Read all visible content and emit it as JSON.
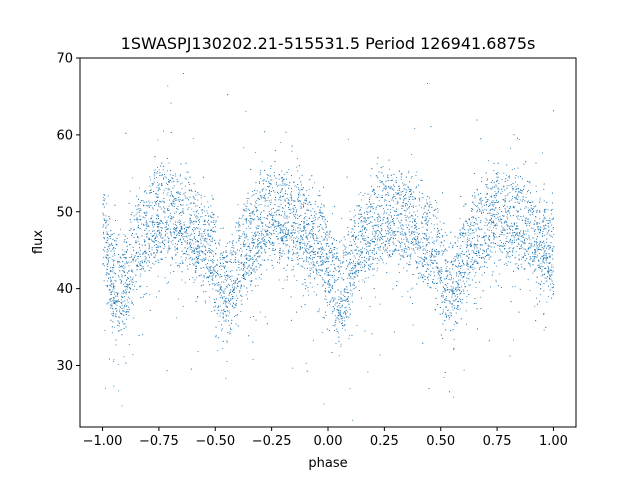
{
  "chart_data": {
    "type": "scatter",
    "title": "1SWASPJ130202.21-515531.5 Period 126941.6875s",
    "xlabel": "phase",
    "ylabel": "flux",
    "xlim": [
      -1.1,
      1.1
    ],
    "ylim": [
      22,
      70
    ],
    "xticks": [
      -1.0,
      -0.75,
      -0.5,
      -0.25,
      0.0,
      0.25,
      0.5,
      0.75,
      1.0
    ],
    "xtick_labels": [
      "−1.00",
      "−0.75",
      "−0.50",
      "−0.25",
      "0.00",
      "0.25",
      "0.50",
      "0.75",
      "1.00"
    ],
    "yticks": [
      30,
      40,
      50,
      60,
      70
    ],
    "ytick_labels": [
      "30",
      "40",
      "50",
      "60",
      "70"
    ],
    "grid": false,
    "marker_color": "#1f77b4",
    "series": [
      {
        "profile_points": [
          {
            "x": -1.0,
            "y_center": 45.0
          },
          {
            "x": -0.95,
            "y_center": 39.0
          },
          {
            "x": -0.92,
            "y_center": 37.5
          },
          {
            "x": -0.85,
            "y_center": 44.0
          },
          {
            "x": -0.75,
            "y_center": 47.5
          },
          {
            "x": -0.65,
            "y_center": 47.0
          },
          {
            "x": -0.55,
            "y_center": 44.0
          },
          {
            "x": -0.45,
            "y_center": 38.0
          },
          {
            "x": -0.35,
            "y_center": 44.5
          },
          {
            "x": -0.25,
            "y_center": 47.5
          },
          {
            "x": -0.15,
            "y_center": 47.0
          },
          {
            "x": -0.05,
            "y_center": 44.0
          },
          {
            "x": 0.05,
            "y_center": 37.5
          },
          {
            "x": 0.15,
            "y_center": 44.0
          },
          {
            "x": 0.25,
            "y_center": 47.5
          },
          {
            "x": 0.35,
            "y_center": 47.0
          },
          {
            "x": 0.45,
            "y_center": 44.0
          },
          {
            "x": 0.55,
            "y_center": 38.0
          },
          {
            "x": 0.65,
            "y_center": 44.5
          },
          {
            "x": 0.75,
            "y_center": 47.5
          },
          {
            "x": 0.85,
            "y_center": 47.0
          },
          {
            "x": 0.95,
            "y_center": 44.0
          },
          {
            "x": 1.0,
            "y_center": 43.0
          }
        ]
      }
    ]
  }
}
